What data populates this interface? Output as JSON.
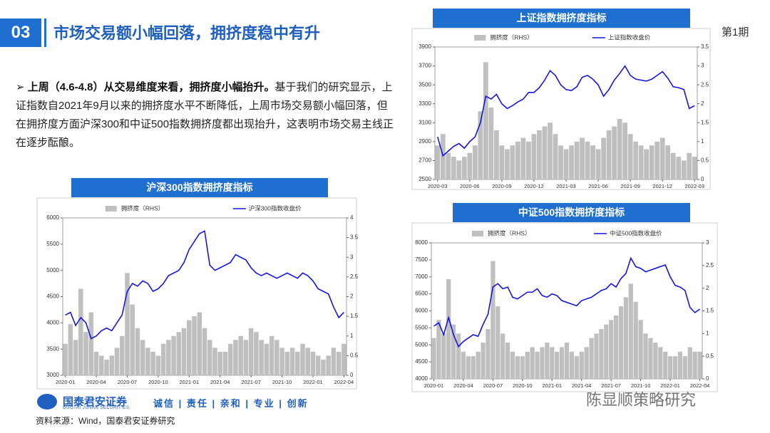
{
  "header": {
    "number": "03",
    "title": "市场交易额小幅回落，拥挤度稳中有升",
    "issue": "第1期"
  },
  "body": {
    "bullet_bold": "上周（4.6-4.8）从交易维度来看，拥挤度小幅抬升。",
    "bullet_text": "基于我们的研究显示，上证指数自2021年9月以来的拥挤度水平不断降低，上周市场交易额小幅回落，但在拥挤度方面沪深300和中证500指数拥挤度都出现抬升，这表明市场交易主线正在逐步酝酿。"
  },
  "footer": {
    "logo_cn": "国泰君安证券",
    "logo_en": "GUOTAI JUNAN SECURITIES",
    "slogan": [
      "诚信",
      "责任",
      "亲和",
      "专业",
      "创新"
    ],
    "source": "资料来源：Wind，国泰君安证券研究"
  },
  "watermark": "陈显顺策略研究",
  "chart_data": [
    {
      "type": "combo",
      "title": "沪深300指数拥挤度指标",
      "categories": [
        "2020-01",
        null,
        null,
        null,
        null,
        null,
        "2020-04",
        null,
        null,
        null,
        null,
        null,
        "2020-07",
        null,
        null,
        null,
        null,
        null,
        "2020-10",
        null,
        null,
        null,
        null,
        null,
        "2021-01",
        null,
        null,
        null,
        null,
        null,
        "2021-04",
        null,
        null,
        null,
        null,
        null,
        "2021-07",
        null,
        null,
        null,
        null,
        null,
        "2021-10",
        null,
        null,
        null,
        null,
        null,
        "2022-01",
        null,
        null,
        null,
        null,
        null,
        "2022-04"
      ],
      "series": [
        {
          "name": "拥挤度（RHS）",
          "color": "#bfbfbf",
          "axis": "y2",
          "values": [
            0.8,
            1.3,
            0.9,
            2.2,
            1.1,
            1.6,
            0.6,
            0.5,
            0.4,
            0.5,
            0.7,
            1.0,
            2.6,
            1.8,
            1.2,
            0.9,
            0.7,
            0.6,
            0.5,
            0.8,
            0.9,
            1.0,
            1.1,
            1.2,
            1.4,
            1.5,
            1.6,
            1.2,
            0.9,
            0.7,
            0.6,
            0.6,
            0.8,
            0.9,
            1.0,
            0.9,
            1.2,
            1.1,
            0.9,
            0.8,
            1.0,
            0.9,
            0.7,
            0.6,
            0.7,
            0.6,
            0.8,
            0.7,
            0.6,
            0.5,
            0.4,
            0.5,
            0.7,
            0.6,
            0.8
          ]
        },
        {
          "name": "沪深300指数收盘价",
          "color": "#1515e6",
          "values": [
            4150,
            4200,
            3950,
            4100,
            4000,
            3700,
            3750,
            3850,
            3900,
            3850,
            4000,
            4150,
            4600,
            4750,
            4700,
            4800,
            4750,
            4600,
            4650,
            4750,
            4900,
            4950,
            5000,
            5150,
            5400,
            5550,
            5700,
            5750,
            5100,
            5000,
            5050,
            5100,
            5150,
            5300,
            5250,
            5200,
            5050,
            4950,
            4900,
            4950,
            4900,
            4850,
            4900,
            4950,
            4900,
            4850,
            4950,
            4900,
            4800,
            4650,
            4600,
            4550,
            4300,
            4100,
            4200
          ]
        }
      ],
      "ylim": [
        3000,
        6000
      ],
      "yticks": [
        3000,
        3500,
        4000,
        4500,
        5000,
        5500,
        6000
      ],
      "y2lim": [
        0,
        4
      ],
      "y2ticks": [
        0,
        0.5,
        1,
        1.5,
        2,
        2.5,
        3,
        3.5,
        4
      ]
    },
    {
      "type": "combo",
      "title": "上证指数拥挤度指标",
      "categories": [
        "2020-03",
        null,
        null,
        null,
        null,
        null,
        "2020-06",
        null,
        null,
        null,
        null,
        null,
        "2020-09",
        null,
        null,
        null,
        null,
        null,
        "2020-12",
        null,
        null,
        null,
        null,
        null,
        "2021-03",
        null,
        null,
        null,
        null,
        null,
        "2021-06",
        null,
        null,
        null,
        null,
        null,
        "2021-09",
        null,
        null,
        null,
        null,
        null,
        "2021-12",
        null,
        null,
        null,
        null,
        null,
        "2022-03"
      ],
      "series": [
        {
          "name": "拥挤度（RHS）",
          "color": "#bfbfbf",
          "axis": "y2",
          "values": [
            0.9,
            1.2,
            0.7,
            0.6,
            0.5,
            0.6,
            0.7,
            0.9,
            1.8,
            3.1,
            1.9,
            1.3,
            0.9,
            0.8,
            0.9,
            1.0,
            1.1,
            1.0,
            1.2,
            1.3,
            1.4,
            1.5,
            1.2,
            0.9,
            0.8,
            0.9,
            1.0,
            1.1,
            1.0,
            0.9,
            0.8,
            1.1,
            1.3,
            1.4,
            1.6,
            1.5,
            1.2,
            1.0,
            0.9,
            0.8,
            0.9,
            1.0,
            1.1,
            0.9,
            0.7,
            0.6,
            0.5,
            0.7,
            0.6
          ]
        },
        {
          "name": "上证指数收盘价",
          "color": "#1515e6",
          "values": [
            2950,
            2750,
            2800,
            2850,
            2880,
            2830,
            2900,
            2950,
            3100,
            3380,
            3350,
            3400,
            3300,
            3250,
            3280,
            3320,
            3350,
            3420,
            3420,
            3470,
            3550,
            3650,
            3600,
            3500,
            3450,
            3440,
            3480,
            3580,
            3600,
            3560,
            3500,
            3380,
            3450,
            3550,
            3620,
            3700,
            3600,
            3560,
            3550,
            3540,
            3560,
            3600,
            3640,
            3570,
            3480,
            3470,
            3450,
            3250,
            3280
          ]
        }
      ],
      "ylim": [
        2500,
        3900
      ],
      "yticks": [
        2500,
        2700,
        2900,
        3100,
        3300,
        3500,
        3700,
        3900
      ],
      "y2lim": [
        0,
        3.5
      ],
      "y2ticks": [
        0,
        0.5,
        1,
        1.5,
        2,
        2.5,
        3,
        3.5
      ]
    },
    {
      "type": "combo",
      "title": "中证500指数拥挤度指标",
      "categories": [
        "2020-01",
        null,
        null,
        null,
        null,
        null,
        "2020-04",
        null,
        null,
        null,
        null,
        null,
        "2020-07",
        null,
        null,
        null,
        null,
        null,
        "2020-10",
        null,
        null,
        null,
        null,
        null,
        "2021-01",
        null,
        null,
        null,
        null,
        null,
        "2021-04",
        null,
        null,
        null,
        null,
        null,
        "2021-07",
        null,
        null,
        null,
        null,
        null,
        "2021-10",
        null,
        null,
        null,
        null,
        null,
        "2022-01",
        null,
        null,
        null,
        null,
        null,
        "2022-04"
      ],
      "series": [
        {
          "name": "拥挤度（RHS）",
          "color": "#bfbfbf",
          "axis": "y2",
          "values": [
            0.9,
            1.3,
            1.0,
            2.2,
            1.2,
            1.0,
            0.6,
            0.5,
            0.5,
            0.6,
            0.8,
            1.1,
            2.6,
            1.6,
            1.0,
            0.8,
            0.6,
            0.5,
            0.5,
            0.6,
            0.7,
            0.6,
            0.7,
            0.8,
            0.7,
            0.6,
            0.7,
            0.8,
            0.6,
            0.5,
            0.6,
            0.7,
            0.9,
            1.0,
            1.1,
            1.2,
            1.3,
            1.4,
            1.6,
            1.8,
            2.1,
            1.7,
            1.3,
            1.0,
            0.9,
            0.8,
            0.7,
            0.6,
            0.5,
            0.5,
            0.6,
            0.5,
            0.7,
            0.6,
            0.6
          ]
        },
        {
          "name": "中证500指数收盘价",
          "color": "#1515e6",
          "values": [
            5550,
            5650,
            5300,
            5800,
            5300,
            4950,
            5100,
            5200,
            5300,
            5250,
            5600,
            5900,
            6700,
            6800,
            6650,
            6700,
            6400,
            6350,
            6450,
            6550,
            6550,
            6650,
            6450,
            6400,
            6500,
            6450,
            6300,
            6250,
            6200,
            6150,
            6300,
            6350,
            6400,
            6500,
            6600,
            6650,
            6800,
            6700,
            6950,
            7100,
            7550,
            7300,
            7250,
            7150,
            7200,
            7250,
            7300,
            7350,
            7000,
            6750,
            6700,
            6600,
            6100,
            5950,
            6050
          ]
        }
      ],
      "ylim": [
        4000,
        8000
      ],
      "yticks": [
        4000,
        4500,
        5000,
        5500,
        6000,
        6500,
        7000,
        7500,
        8000
      ],
      "y2lim": [
        0,
        3
      ],
      "y2ticks": [
        0,
        0.5,
        1,
        1.5,
        2,
        2.5,
        3
      ]
    }
  ]
}
